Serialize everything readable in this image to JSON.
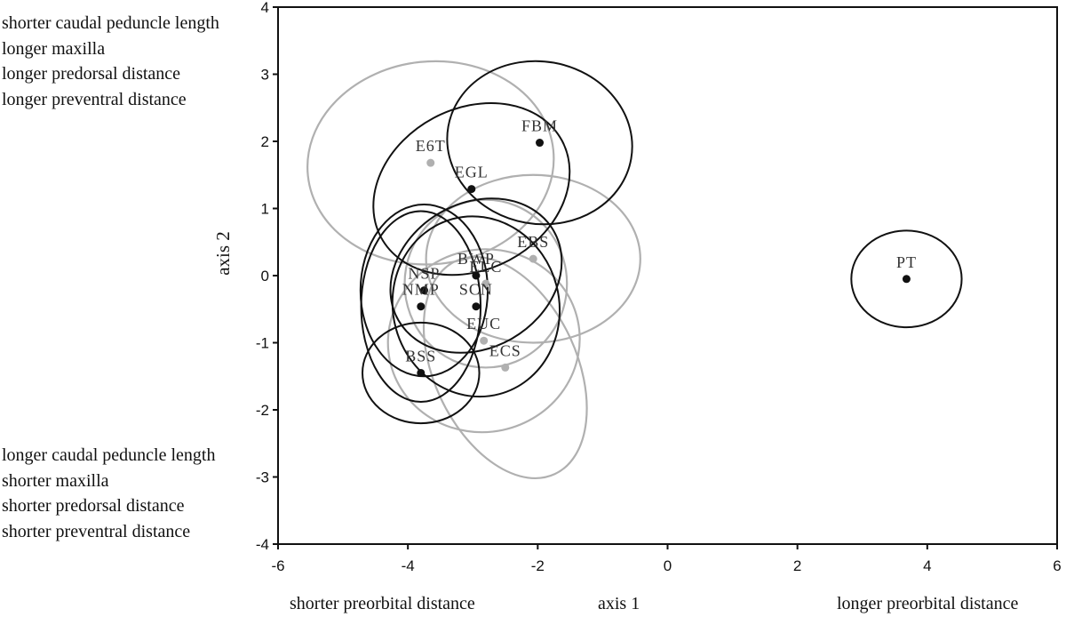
{
  "chart_data": {
    "type": "scatter",
    "title": "",
    "xlabel": "axis 1",
    "ylabel": "axis 2",
    "xlim": [
      -6,
      6
    ],
    "ylim": [
      -4,
      4
    ],
    "xticks": [
      "-6",
      "-4",
      "-2",
      "0",
      "2",
      "4",
      "6"
    ],
    "yticks": [
      "4",
      "3",
      "2",
      "1",
      "0",
      "-1",
      "-2",
      "-3",
      "-4"
    ],
    "grid": false,
    "colors": {
      "black": "#111111",
      "gray": "#b0b0b0"
    },
    "points": [
      {
        "label": "FBM",
        "x": -1.97,
        "y": 1.98,
        "color": "black",
        "ellipse": {
          "rx": 1.43,
          "ry": 1.21,
          "angle": 10
        }
      },
      {
        "label": "E6T",
        "x": -3.65,
        "y": 1.68,
        "color": "gray",
        "ellipse": {
          "rx": 1.9,
          "ry": 1.51,
          "angle": -6
        }
      },
      {
        "label": "EGL",
        "x": -3.02,
        "y": 1.29,
        "color": "black",
        "ellipse": {
          "rx": 1.58,
          "ry": 1.2,
          "angle": -28
        }
      },
      {
        "label": "EBS",
        "x": -2.07,
        "y": 0.25,
        "color": "gray",
        "ellipse": {
          "rx": 1.65,
          "ry": 1.25,
          "angle": 0
        }
      },
      {
        "label": "BWP",
        "x": -2.95,
        "y": 0.0,
        "color": "black",
        "ellipse": {
          "rx": 1.38,
          "ry": 1.08,
          "angle": -30
        }
      },
      {
        "label": "ELC",
        "x": -2.8,
        "y": -0.12,
        "color": "gray",
        "ellipse": {
          "rx": 1.25,
          "ry": 1.25,
          "angle": 0
        }
      },
      {
        "label": "NSP",
        "x": -3.75,
        "y": -0.22,
        "color": "black",
        "ellipse": {
          "rx": 0.98,
          "ry": 1.28,
          "angle": 0
        }
      },
      {
        "label": "NMP",
        "x": -3.8,
        "y": -0.46,
        "color": "black",
        "ellipse": {
          "rx": 0.92,
          "ry": 1.42,
          "angle": 0
        }
      },
      {
        "label": "SCN",
        "x": -2.95,
        "y": -0.46,
        "color": "black",
        "ellipse": {
          "rx": 1.28,
          "ry": 1.35,
          "angle": -15
        }
      },
      {
        "label": "EUC",
        "x": -2.83,
        "y": -0.97,
        "color": "gray",
        "ellipse": {
          "rx": 1.48,
          "ry": 1.36,
          "angle": -12
        }
      },
      {
        "label": "ECS",
        "x": -2.5,
        "y": -1.37,
        "color": "gray",
        "ellipse": {
          "rx": 1.1,
          "ry": 1.75,
          "angle": -25
        }
      },
      {
        "label": "BSS",
        "x": -3.8,
        "y": -1.45,
        "color": "black",
        "ellipse": {
          "rx": 0.9,
          "ry": 0.75,
          "angle": 0
        }
      },
      {
        "label": "PT",
        "x": 3.68,
        "y": -0.05,
        "color": "black",
        "ellipse": {
          "rx": 0.85,
          "ry": 0.72,
          "angle": 0
        }
      }
    ]
  },
  "annotations": {
    "top_left": [
      "shorter caudal peduncle length",
      "longer maxilla",
      "longer predorsal distance",
      "longer preventral distance"
    ],
    "bottom_left": [
      "longer caudal peduncle length",
      "shorter maxilla",
      "shorter predorsal distance",
      "shorter preventral distance"
    ],
    "x_low": "shorter preorbital distance",
    "x_high": "longer preorbital distance"
  }
}
